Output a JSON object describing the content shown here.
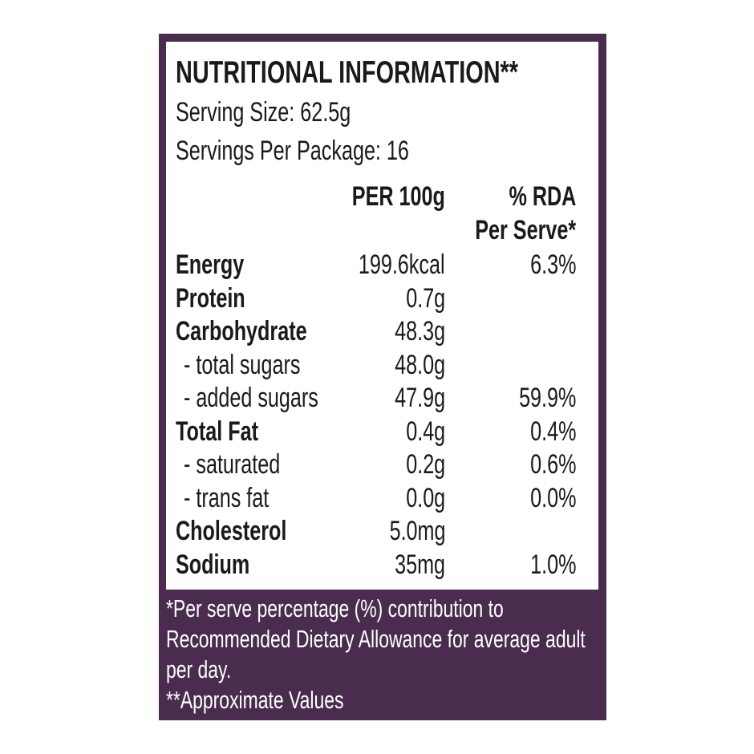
{
  "header": {
    "title": "NUTRITIONAL INFORMATION**",
    "serving_size": "Serving Size: 62.5g",
    "servings_per_package": "Servings Per Package: 16"
  },
  "table": {
    "column_per_100g": "PER 100g",
    "column_rda": [
      "% RDA",
      "Per Serve*"
    ],
    "rows": [
      [
        "Energy",
        "199.6kcal",
        "6.3%"
      ],
      [
        "Protein",
        "0.7g",
        null
      ],
      [
        "Carbohydrate",
        "48.3g",
        null
      ],
      [
        "- total sugars",
        "48.0g",
        null
      ],
      [
        "- added sugars",
        "47.9g",
        "59.9%"
      ],
      [
        "Total Fat",
        "0.4g",
        "0.4%"
      ],
      [
        "- saturated",
        "0.2g",
        "0.6%"
      ],
      [
        "- trans fat",
        "0.0g",
        "0.0%"
      ],
      [
        "Cholesterol",
        "5.0mg",
        null
      ],
      [
        "Sodium",
        "35mg",
        "1.0%"
      ]
    ]
  },
  "footer": {
    "notes": [
      "*Per serve percentage (%) contribution to",
      "Recommended Dietary Allowance for average adult",
      "per day.",
      "**Approximate Values"
    ]
  }
}
